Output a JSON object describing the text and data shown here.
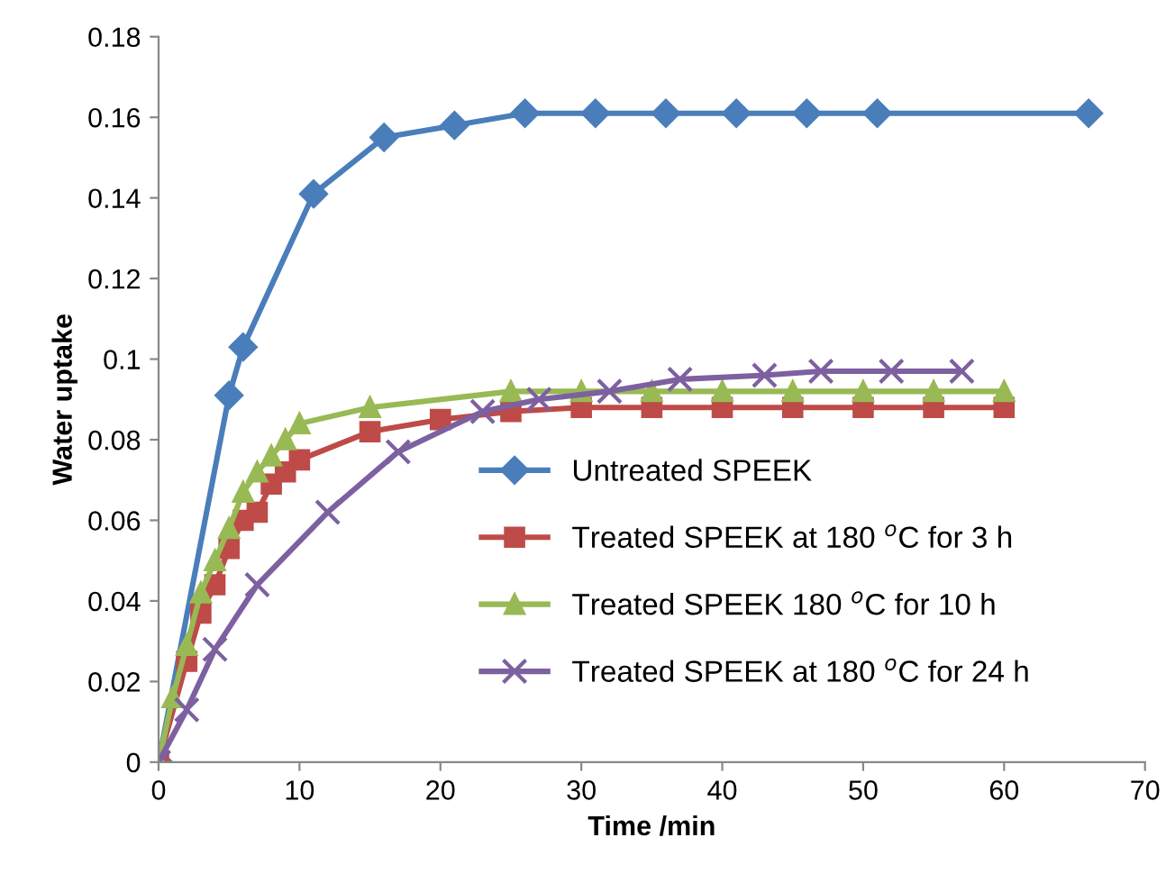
{
  "chart_data": {
    "type": "line",
    "xlabel": "Time /min",
    "ylabel": "Water uptake",
    "xlim": [
      0,
      70
    ],
    "xticks": [
      0,
      10,
      20,
      30,
      40,
      50,
      60,
      70
    ],
    "ylim": [
      0,
      0.18
    ],
    "yticks": [
      0,
      0.02,
      0.04,
      0.06,
      0.08,
      0.1,
      0.12,
      0.14,
      0.16,
      0.18
    ],
    "grid": false,
    "legend": "right",
    "series": [
      {
        "name": "Untreated SPEEK",
        "color": "#4a7ebb",
        "marker": "diamond",
        "x": [
          0,
          5,
          6,
          11,
          16,
          21,
          26,
          31,
          36,
          41,
          46,
          51,
          66
        ],
        "values": [
          0,
          0.091,
          0.103,
          0.141,
          0.155,
          0.158,
          0.161,
          0.161,
          0.161,
          0.161,
          0.161,
          0.161,
          0.161
        ]
      },
      {
        "name": "Treated SPEEK at 180 $^{o}$C for 3 h",
        "color": "#be4b48",
        "marker": "square",
        "x": [
          0,
          2,
          3,
          4,
          5,
          6,
          7,
          8,
          9,
          10,
          15,
          20,
          25,
          30,
          35,
          40,
          45,
          50,
          55,
          60
        ],
        "values": [
          0,
          0.025,
          0.037,
          0.044,
          0.053,
          0.06,
          0.062,
          0.069,
          0.072,
          0.075,
          0.082,
          0.085,
          0.087,
          0.088,
          0.088,
          0.088,
          0.088,
          0.088,
          0.088,
          0.088
        ]
      },
      {
        "name": "Treated SPEEK 180 $^{o}$C for 10 h",
        "color": "#98b954",
        "marker": "triangle",
        "x": [
          0,
          1,
          2,
          3,
          4,
          5,
          6,
          7,
          8,
          9,
          10,
          15,
          25,
          30,
          35,
          40,
          45,
          50,
          55,
          60
        ],
        "values": [
          0,
          0.016,
          0.029,
          0.042,
          0.05,
          0.058,
          0.067,
          0.072,
          0.076,
          0.08,
          0.084,
          0.088,
          0.092,
          0.092,
          0.092,
          0.092,
          0.092,
          0.092,
          0.092,
          0.092
        ]
      },
      {
        "name": "Treated SPEEK at 180 $^{o}$C for 24 h",
        "color": "#7d60a0",
        "marker": "cross",
        "x": [
          0,
          2,
          4,
          7,
          12,
          17,
          23,
          27,
          32,
          37,
          43,
          47,
          52,
          57
        ],
        "values": [
          0,
          0.013,
          0.028,
          0.044,
          0.062,
          0.077,
          0.087,
          0.09,
          0.092,
          0.095,
          0.096,
          0.097,
          0.097,
          0.097
        ]
      }
    ]
  }
}
